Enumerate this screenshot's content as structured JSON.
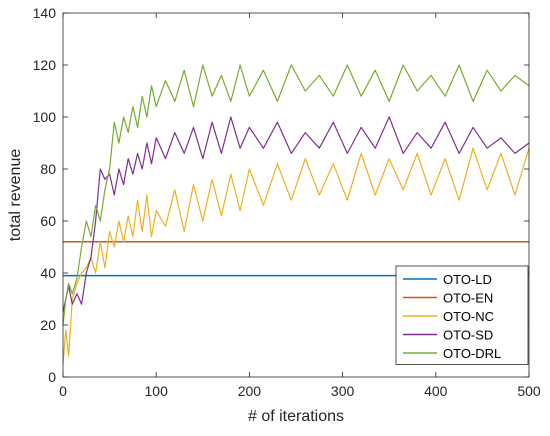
{
  "chart_data": {
    "type": "line",
    "xlabel": "# of iterations",
    "ylabel": "total revenue",
    "xlim": [
      0,
      500
    ],
    "ylim": [
      0,
      140
    ],
    "xticks": [
      0,
      100,
      200,
      300,
      400,
      500
    ],
    "yticks": [
      0,
      20,
      40,
      60,
      80,
      100,
      120,
      140
    ],
    "grid": false,
    "legend_position": "bottom-right",
    "noise_note": "OTO-NC, OTO-SD and OTO-DRL fluctuate strongly every iteration; values are read approximately along each series envelope",
    "series": [
      {
        "name": "OTO-LD",
        "color": "#0072BD",
        "x": [
          0,
          500
        ],
        "y": [
          39,
          39
        ]
      },
      {
        "name": "OTO-EN",
        "color": "#D95319",
        "x": [
          0,
          500
        ],
        "y": [
          52,
          52
        ]
      },
      {
        "name": "OTO-NC",
        "color": "#EDB120",
        "x": [
          0,
          3,
          6,
          10,
          15,
          20,
          25,
          30,
          35,
          40,
          45,
          50,
          55,
          60,
          65,
          70,
          75,
          80,
          85,
          90,
          95,
          100,
          110,
          120,
          130,
          140,
          150,
          160,
          170,
          180,
          190,
          200,
          215,
          230,
          245,
          260,
          275,
          290,
          305,
          320,
          335,
          350,
          365,
          380,
          395,
          410,
          425,
          440,
          455,
          470,
          485,
          500
        ],
        "y": [
          5,
          18,
          8,
          30,
          36,
          40,
          42,
          46,
          40,
          52,
          42,
          56,
          50,
          60,
          52,
          62,
          54,
          68,
          56,
          70,
          54,
          64,
          58,
          72,
          56,
          74,
          60,
          76,
          62,
          78,
          64,
          80,
          66,
          82,
          68,
          84,
          70,
          82,
          68,
          86,
          70,
          84,
          72,
          86,
          70,
          84,
          68,
          88,
          72,
          86,
          70,
          88
        ]
      },
      {
        "name": "OTO-SD",
        "color": "#7E2F8E",
        "x": [
          0,
          3,
          6,
          10,
          15,
          20,
          25,
          30,
          35,
          40,
          45,
          50,
          55,
          60,
          65,
          70,
          75,
          80,
          85,
          90,
          95,
          100,
          110,
          120,
          130,
          140,
          150,
          160,
          170,
          180,
          190,
          200,
          215,
          230,
          245,
          260,
          275,
          290,
          305,
          320,
          335,
          350,
          365,
          380,
          395,
          410,
          425,
          440,
          455,
          470,
          485,
          500
        ],
        "y": [
          25,
          30,
          35,
          28,
          32,
          28,
          40,
          46,
          60,
          80,
          76,
          78,
          70,
          80,
          74,
          84,
          78,
          86,
          80,
          90,
          82,
          92,
          84,
          94,
          86,
          96,
          84,
          98,
          86,
          100,
          88,
          96,
          88,
          98,
          86,
          94,
          88,
          98,
          86,
          96,
          88,
          100,
          86,
          94,
          88,
          98,
          86,
          96,
          88,
          92,
          86,
          90
        ]
      },
      {
        "name": "OTO-DRL",
        "color": "#77AC30",
        "x": [
          0,
          3,
          6,
          10,
          15,
          20,
          25,
          30,
          35,
          40,
          45,
          50,
          55,
          60,
          65,
          70,
          75,
          80,
          85,
          90,
          95,
          100,
          110,
          120,
          130,
          140,
          150,
          160,
          170,
          180,
          190,
          200,
          215,
          230,
          245,
          260,
          275,
          290,
          305,
          320,
          335,
          350,
          365,
          380,
          395,
          410,
          425,
          440,
          455,
          470,
          485,
          500
        ],
        "y": [
          20,
          30,
          36,
          32,
          38,
          50,
          60,
          54,
          66,
          60,
          72,
          80,
          98,
          90,
          100,
          94,
          104,
          96,
          108,
          100,
          112,
          104,
          114,
          106,
          118,
          104,
          120,
          108,
          116,
          106,
          120,
          108,
          118,
          106,
          120,
          110,
          116,
          108,
          120,
          108,
          118,
          106,
          120,
          110,
          116,
          108,
          120,
          106,
          118,
          110,
          116,
          112
        ]
      }
    ]
  }
}
